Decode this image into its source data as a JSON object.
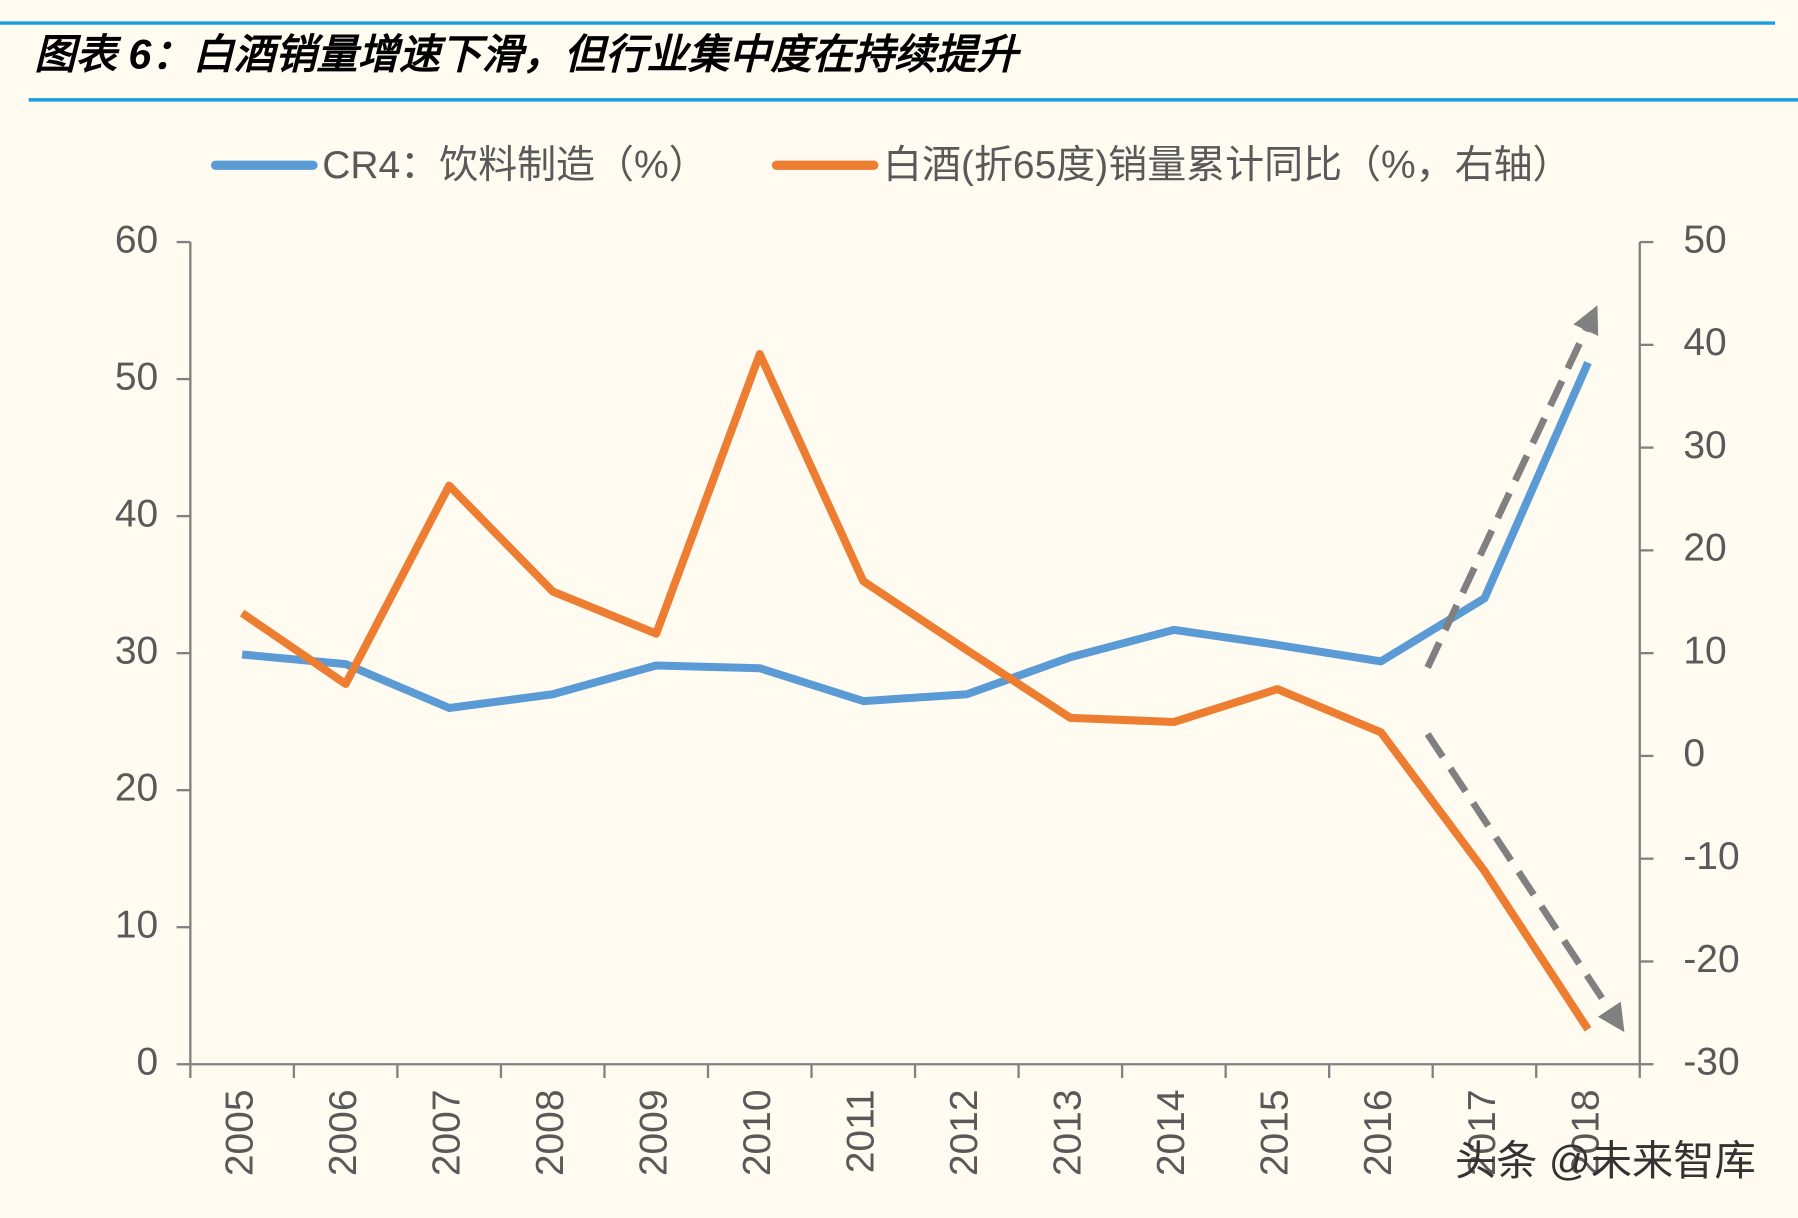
{
  "title": "图表 6：白酒销量增速下滑，但行业集中度在持续提升",
  "chart_data": {
    "type": "line",
    "categories": [
      "2005",
      "2006",
      "2007",
      "2008",
      "2009",
      "2010",
      "2011",
      "2012",
      "2013",
      "2014",
      "2015",
      "2016",
      "2017",
      "2018"
    ],
    "series": [
      {
        "name": "CR4：饮料制造（%）",
        "color": "#5b9bd5",
        "values": [
          29.9,
          29.2,
          26.0,
          27.0,
          29.1,
          28.9,
          26.5,
          27.0,
          29.7,
          31.7,
          30.6,
          29.4,
          34.0,
          51.2
        ]
      },
      {
        "name": "白酒(折65度)销量累计同比（%，右轴）",
        "color": "#ed7d31",
        "axis": "y2",
        "values": [
          13.9,
          7.0,
          26.3,
          16.0,
          11.9,
          39.1,
          17.0,
          10.3,
          3.7,
          3.3,
          6.5,
          2.3,
          -11.2,
          -26.6
        ]
      }
    ],
    "ylim": [
      0,
      60
    ],
    "yticks": [
      0,
      10,
      20,
      30,
      40,
      50,
      60
    ],
    "y2lim": [
      -30,
      50
    ],
    "y2ticks": [
      -30,
      -20,
      -10,
      0,
      10,
      20,
      30,
      40,
      50
    ],
    "legend": "top"
  },
  "watermark": "头条 @未来智库"
}
